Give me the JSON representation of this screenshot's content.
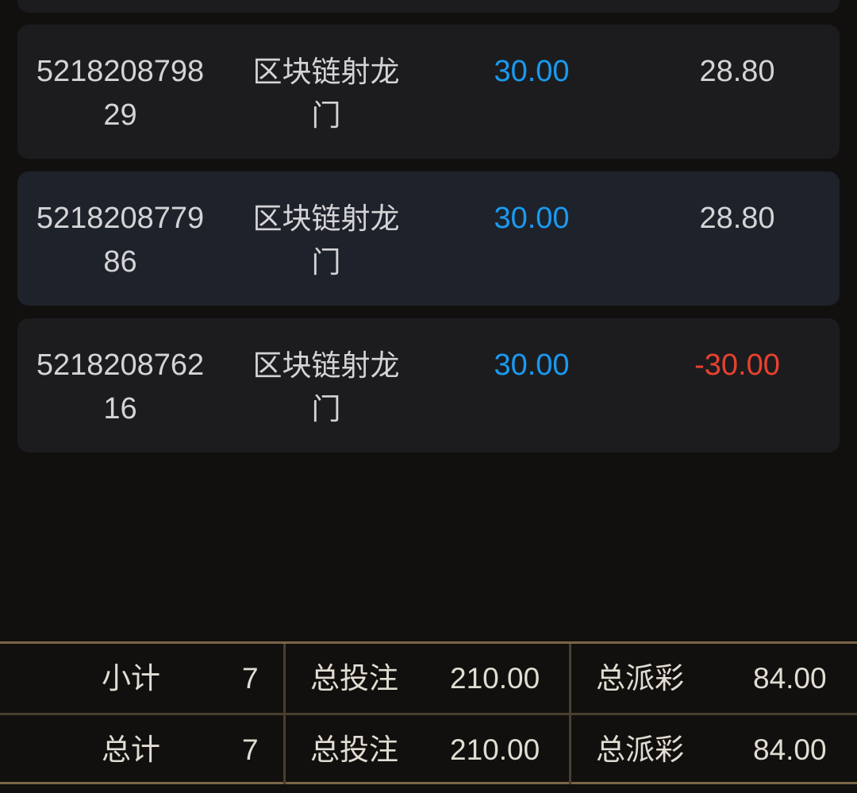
{
  "bets": [
    {
      "id": "521820879829",
      "game": "区块链射龙门",
      "bet": "30.00",
      "payout": "28.80",
      "payout_color": "#d4d4d6"
    },
    {
      "id": "521820877986",
      "game": "区块链射龙门",
      "bet": "30.00",
      "payout": "28.80",
      "payout_color": "#d4d4d6"
    },
    {
      "id": "521820876216",
      "game": "区块链射龙门",
      "bet": "30.00",
      "payout": "-30.00",
      "payout_color": "#e8412f"
    }
  ],
  "summary": {
    "subtotal": {
      "label": "小计",
      "count": "7",
      "bet_label": "总投注",
      "bet": "210.00",
      "payout_label": "总派彩",
      "payout": "84.00"
    },
    "total": {
      "label": "总计",
      "count": "7",
      "bet_label": "总投注",
      "bet": "210.00",
      "payout_label": "总派彩",
      "payout": "84.00"
    }
  },
  "colors": {
    "background": "#12100e",
    "card": "#1c1c1f",
    "card_alt": "#1e222b",
    "bet": "#1a9af0",
    "negative": "#e8412f",
    "border": "#7a6548"
  }
}
